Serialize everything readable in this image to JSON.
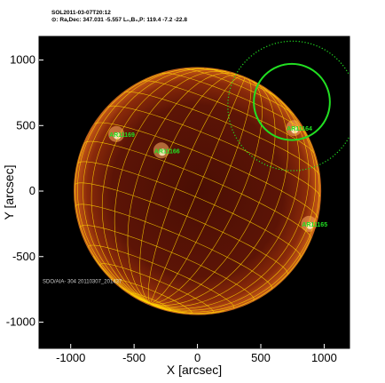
{
  "header": {
    "line1": "SOL2011-03-07T20:12",
    "line2": "⊙: Ra,Dec: 347.031 -5.557   L₀,B₀,P: 119.4 -7.2 -22.8"
  },
  "chart_data": {
    "type": "scatter",
    "xlabel": "X [arcsec]",
    "ylabel": "Y [arcsec]",
    "xlim": [
      -1250,
      1200
    ],
    "ylim": [
      -1200,
      1180
    ],
    "xticks": [
      -1000,
      -500,
      0,
      500,
      1000
    ],
    "yticks": [
      -1000,
      -500,
      0,
      500,
      1000
    ],
    "solar_radius_arcsec": 968,
    "background_color": "#000000",
    "limb_color": "#d26a1c",
    "grid_color": "#ffd400",
    "instrument_label": "SDO/AIA- 304 20110307_201437",
    "regions": [
      {
        "name": "AR11169",
        "x": -640,
        "y": 435
      },
      {
        "name": "AR11166",
        "x": -285,
        "y": 310
      },
      {
        "name": "AR11164",
        "x": 760,
        "y": 480
      },
      {
        "name": "AR11165",
        "x": 880,
        "y": -250
      }
    ],
    "circles": [
      {
        "x": 745,
        "y": 680,
        "r": 300,
        "style": "solid",
        "color": "#22e022"
      },
      {
        "x": 750,
        "y": 650,
        "r": 510,
        "style": "dotted",
        "color": "#22e022"
      }
    ]
  }
}
